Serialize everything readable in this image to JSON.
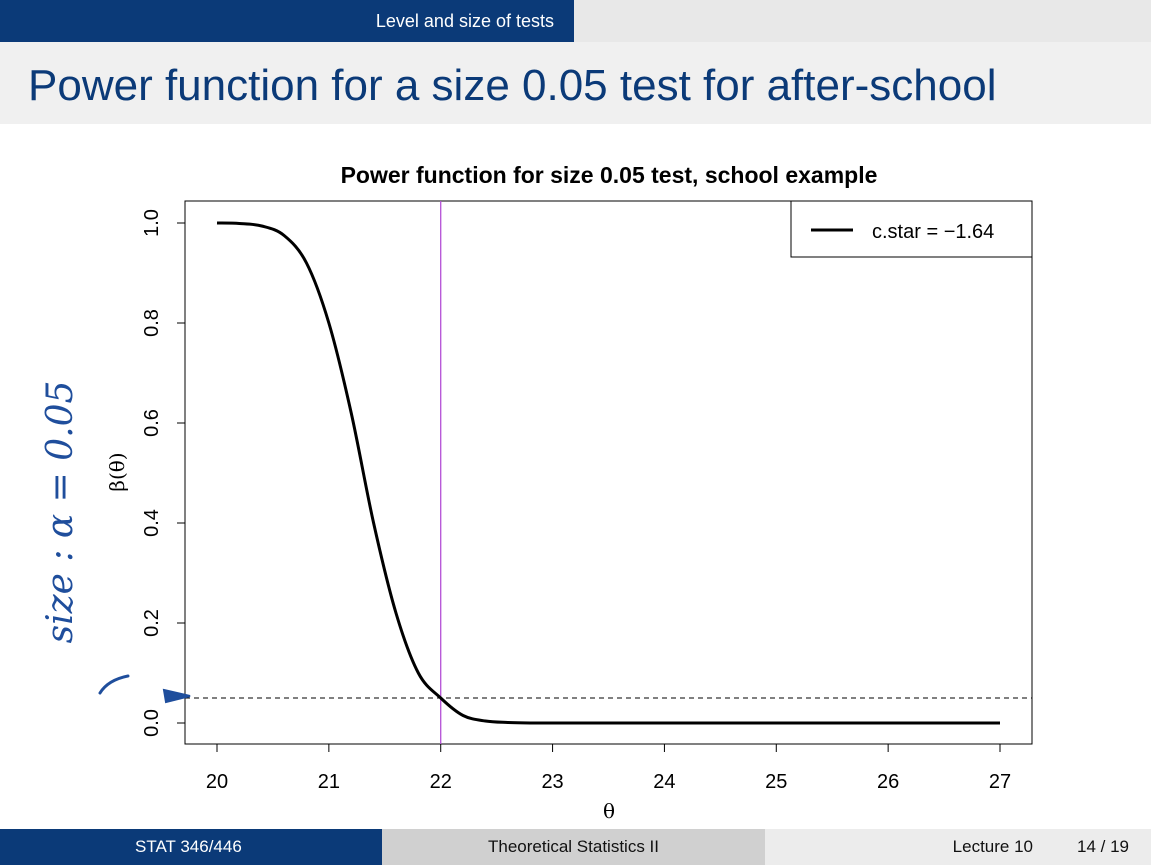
{
  "header": {
    "section": "Level and size of tests",
    "title": "Power function for a size 0.05 test for after-school"
  },
  "footer": {
    "course": "STAT 346/446",
    "subject": "Theoretical Statistics II",
    "lecture": "Lecture 10",
    "page": "14 / 19"
  },
  "annotation": {
    "handwritten": "size : α = 0.05"
  },
  "colors": {
    "accent": "#0b3a78",
    "vline": "#b44fd6",
    "annotation": "#1f4e9c"
  },
  "chart_data": {
    "type": "line",
    "title": "Power function for size 0.05 test, school example",
    "xlabel": "θ",
    "ylabel": "β(θ)",
    "xlim": [
      20,
      27
    ],
    "ylim": [
      0,
      1
    ],
    "xticks": [
      "20",
      "21",
      "22",
      "23",
      "24",
      "25",
      "26",
      "27"
    ],
    "yticks": [
      "0.0",
      "0.2",
      "0.4",
      "0.6",
      "0.8",
      "1.0"
    ],
    "legend": {
      "position": "top-right",
      "entries": [
        "c.star =  −1.64"
      ]
    },
    "series": [
      {
        "x": [
          20.0,
          20.2,
          20.4,
          20.6,
          20.8,
          21.0,
          21.2,
          21.4,
          21.6,
          21.8,
          22.0,
          22.2,
          22.4,
          22.6,
          22.8,
          23.0,
          24.0,
          25.0,
          26.0,
          27.0
        ],
        "y": [
          1.0,
          0.999,
          0.994,
          0.975,
          0.92,
          0.8,
          0.62,
          0.4,
          0.22,
          0.1,
          0.05,
          0.015,
          0.004,
          0.001,
          0.0,
          0.0,
          0.0,
          0.0,
          0.0,
          0.0
        ]
      }
    ],
    "reference_lines": [
      {
        "orientation": "vertical",
        "x": 22
      },
      {
        "orientation": "horizontal",
        "y": 0.05,
        "style": "dashed"
      }
    ]
  }
}
